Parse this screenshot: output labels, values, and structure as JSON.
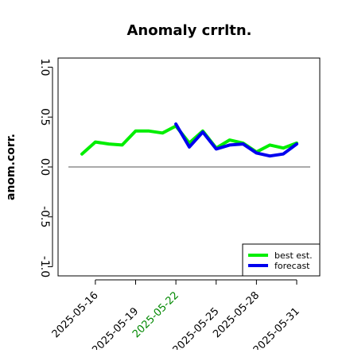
{
  "chart_data": {
    "type": "line",
    "title": "Anomaly crrltn.",
    "ylabel": "anom.corr.",
    "xlabel": "",
    "ylim": [
      -1.05,
      1.05
    ],
    "yticks": [
      -1.0,
      -0.5,
      0.0,
      0.5,
      1.0
    ],
    "ytick_labels": [
      "-1.0",
      "-0.5",
      "0.0",
      "0.5",
      "1.0"
    ],
    "x": [
      "2025-05-15",
      "2025-05-16",
      "2025-05-17",
      "2025-05-18",
      "2025-05-19",
      "2025-05-20",
      "2025-05-21",
      "2025-05-22",
      "2025-05-23",
      "2025-05-24",
      "2025-05-25",
      "2025-05-26",
      "2025-05-27",
      "2025-05-28",
      "2025-05-29",
      "2025-05-30",
      "2025-05-31"
    ],
    "xtick_labels": [
      "2025-05-16",
      "2025-05-19",
      "2025-05-22",
      "2025-05-25",
      "2025-05-28",
      "2025-05-31"
    ],
    "highlight_tick": "2025-05-22",
    "series": [
      {
        "name": "best est.",
        "color": "#00ee00",
        "values": [
          0.13,
          0.25,
          0.23,
          0.22,
          0.36,
          0.36,
          0.34,
          0.41,
          0.24,
          0.36,
          0.19,
          0.27,
          0.24,
          0.15,
          0.22,
          0.19,
          0.24
        ]
      },
      {
        "name": "forecast",
        "color": "#0000ee",
        "values": [
          null,
          null,
          null,
          null,
          null,
          null,
          null,
          0.43,
          0.2,
          0.35,
          0.18,
          0.22,
          0.23,
          0.14,
          0.11,
          0.13,
          0.23
        ]
      }
    ],
    "reference_line": 0.0,
    "legend_position": "bottom-right",
    "grid": false,
    "colors": {
      "highlight_tick": "#008800",
      "axis": "#000000"
    }
  }
}
